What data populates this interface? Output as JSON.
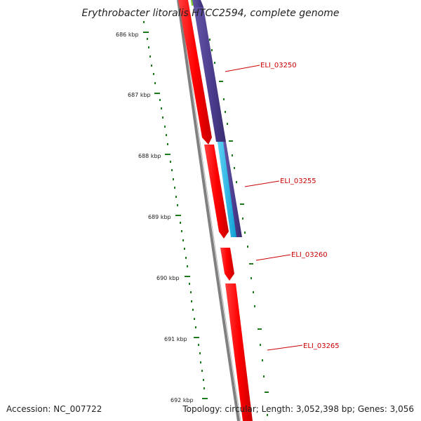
{
  "title": "Erythrobacter litoralis HTCC2594, complete genome",
  "accession": "Accession: NC_007722",
  "summary": "Topology: circular; Length: 3,052,398 bp; Genes: 3,056",
  "colors": {
    "backbone": "#808080",
    "forward_cds": "#ff0000",
    "reverse_cds": "#4b3b8c",
    "cyan_feature": "#1ab4e8",
    "green_feature": "#7ec832",
    "ticks": "#1f7a1f",
    "labels": "#cc0000"
  },
  "ticks": [
    {
      "label": "686 kbp"
    },
    {
      "label": "687 kbp"
    },
    {
      "label": "688 kbp"
    },
    {
      "label": "689 kbp"
    },
    {
      "label": "690 kbp"
    },
    {
      "label": "691 kbp"
    },
    {
      "label": "692 kbp"
    }
  ],
  "genes": [
    {
      "label": "ELI_03250"
    },
    {
      "label": "ELI_03255"
    },
    {
      "label": "ELI_03260"
    },
    {
      "label": "ELI_03265"
    }
  ]
}
